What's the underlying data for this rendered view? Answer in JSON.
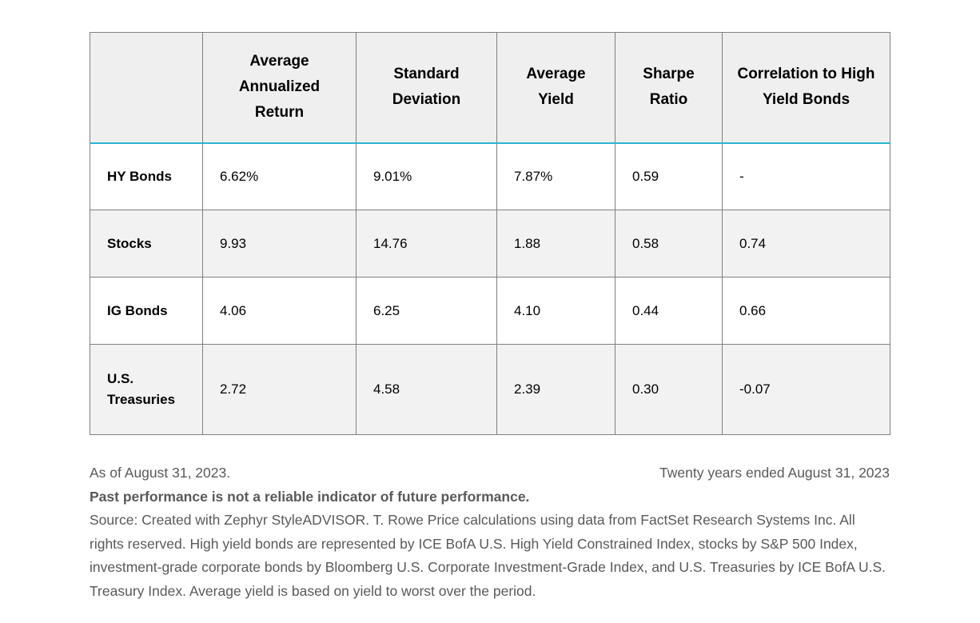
{
  "chart_data": {
    "type": "table",
    "columns": [
      "",
      "Average Annualized Return",
      "Standard Deviation",
      "Average Yield",
      "Sharpe Ratio",
      "Correlation to High Yield Bonds"
    ],
    "rows": [
      {
        "label": "HY Bonds",
        "values": [
          "6.62%",
          "9.01%",
          "7.87%",
          "0.59",
          "-"
        ]
      },
      {
        "label": "Stocks",
        "values": [
          "9.93",
          "14.76",
          "1.88",
          "0.58",
          "0.74"
        ]
      },
      {
        "label": "IG Bonds",
        "values": [
          "4.06",
          "6.25",
          "4.10",
          "0.44",
          "0.66"
        ]
      },
      {
        "label": "U.S. Treasuries",
        "values": [
          "2.72",
          "4.58",
          "2.39",
          "0.30",
          "-0.07"
        ]
      }
    ]
  },
  "footnotes": {
    "as_of": "As of August 31, 2023.",
    "period": "Twenty years ended August 31, 2023",
    "disclaimer": "Past performance is not a reliable indicator of future performance.",
    "source": "Source: Created with Zephyr StyleADVISOR. T. Rowe Price calculations using data from FactSet Research Systems Inc. All rights reserved. High yield bonds are represented by ICE BofA U.S. High Yield Constrained Index, stocks by S&P 500 Index, investment-grade corporate bonds by Bloomberg U.S. Corporate Investment-Grade Index, and U.S. Treasuries by ICE BofA U.S. Treasury Index. Average yield is based on yield to worst over the period."
  },
  "colors": {
    "accent_line": "#2ab5cf",
    "grid_line": "#7f7f7f",
    "header_bg": "#efefef",
    "alt_row_bg": "#f2f2f2",
    "footnote_text": "#595959",
    "cell_text": "#000000"
  }
}
